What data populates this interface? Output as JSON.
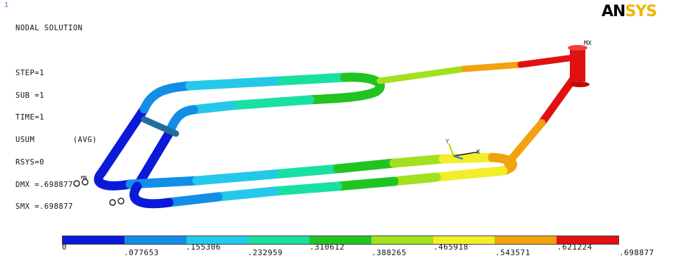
{
  "window": {
    "number": "1"
  },
  "logo": {
    "part1": "AN",
    "part2": "SYS"
  },
  "info": {
    "lines": [
      "NODAL SOLUTION",
      "",
      "STEP=1",
      "SUB =1",
      "TIME=1",
      "USUM        (AVG)",
      "RSYS=0",
      "DMX =.698877",
      "SMX =.698877"
    ]
  },
  "labels": {
    "max": "MX",
    "min": "MN",
    "axis_x": "X",
    "axis_y": "Y"
  },
  "legend": {
    "colors": [
      "#0b1ad8",
      "#138ee8",
      "#24c9ea",
      "#19e0a2",
      "#21c321",
      "#a3e01f",
      "#f2ee2a",
      "#f2a20f",
      "#e21111"
    ],
    "ticks": [
      "0",
      ".077653",
      ".155306",
      ".232959",
      ".310612",
      ".388265",
      ".465918",
      ".543571",
      ".621224",
      ".698877"
    ]
  }
}
